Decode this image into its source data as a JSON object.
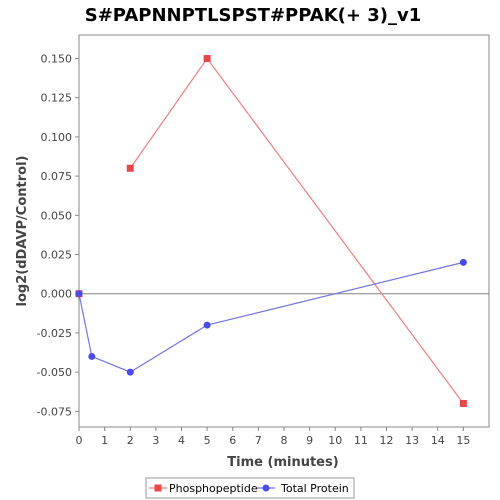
{
  "chart_data": {
    "type": "line",
    "title": "S#PAPNNPTLSPST#PPAK(+ 3)_v1",
    "xlabel": "Time (minutes)",
    "ylabel": "log2(dDAVP/Control)",
    "xlim": [
      0,
      16
    ],
    "ylim": [
      -0.085,
      0.165
    ],
    "x_ticks": [
      0,
      1,
      2,
      3,
      4,
      5,
      6,
      7,
      8,
      9,
      10,
      11,
      12,
      13,
      14,
      15
    ],
    "x_tick_labels": [
      "0",
      "1",
      "2",
      "3",
      "4",
      "5",
      "6",
      "7",
      "8",
      "9",
      "10",
      "11",
      "12",
      "13",
      "14",
      "15"
    ],
    "y_ticks": [
      -0.075,
      -0.05,
      -0.025,
      0.0,
      0.025,
      0.05,
      0.075,
      0.1,
      0.125,
      0.15
    ],
    "y_tick_labels": [
      "-0.075",
      "-0.050",
      "-0.025",
      "0.000",
      "0.025",
      "0.050",
      "0.075",
      "0.100",
      "0.125",
      "0.150"
    ],
    "zero_line": true,
    "grid": false,
    "legend_position": "bottom",
    "series": [
      {
        "name": "Phosphopeptide",
        "color": "#e8474a",
        "line_color": "#e88080",
        "marker": "square",
        "x": [
          0,
          2,
          5,
          15
        ],
        "y": [
          0.0,
          0.08,
          0.15,
          -0.07
        ],
        "segments": [
          [
            0,
            0
          ],
          [
            1,
            3
          ]
        ]
      },
      {
        "name": "Total Protein",
        "color": "#4b4bea",
        "line_color": "#7474e0",
        "marker": "circle",
        "x": [
          0,
          0.5,
          2,
          5,
          15
        ],
        "y": [
          0.0,
          -0.04,
          -0.05,
          -0.02,
          0.02
        ],
        "segments": [
          [
            0,
            4
          ]
        ]
      }
    ]
  }
}
